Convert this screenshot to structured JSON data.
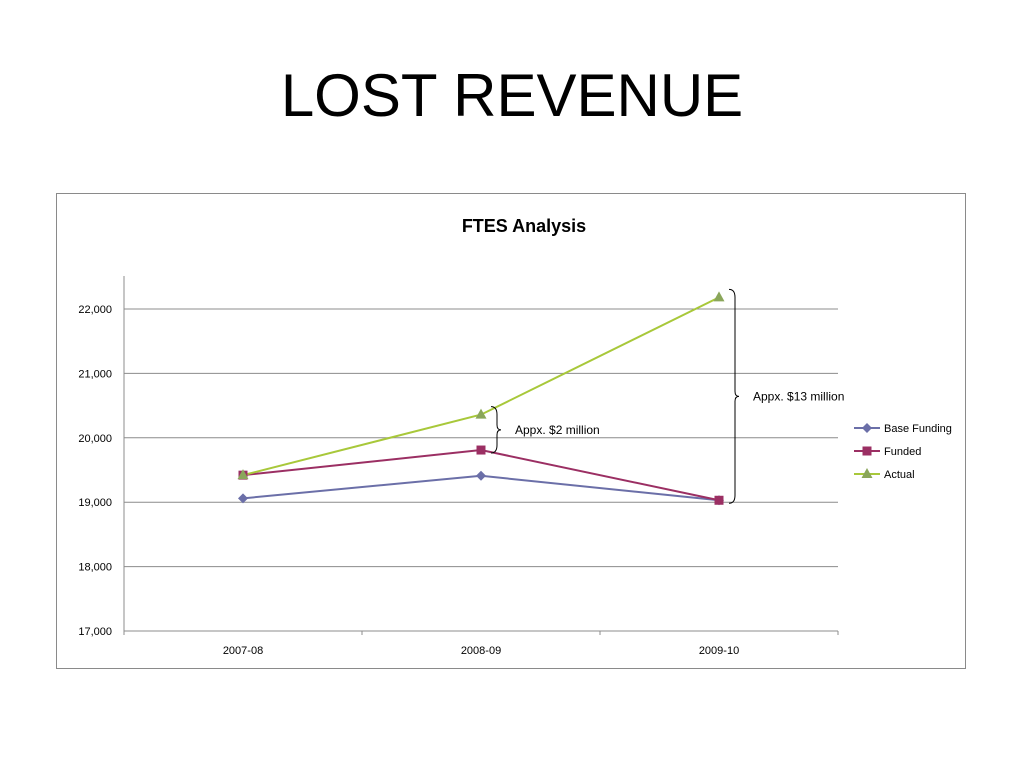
{
  "slide": {
    "title": "LOST REVENUE"
  },
  "colors": {
    "base_funding": "#6b6fa8",
    "funded": "#9b2f63",
    "actual": "#a8c83a",
    "actual_marker": "#8aa65a",
    "grid": "#8c8c8c"
  },
  "chart_data": {
    "type": "line",
    "title": "FTES Analysis",
    "categories": [
      "2007-08",
      "2008-09",
      "2009-10"
    ],
    "ylim": [
      17000,
      22500
    ],
    "yticks": [
      "17,000",
      "18,000",
      "19,000",
      "20,000",
      "21,000",
      "22,000"
    ],
    "ytick_values": [
      17000,
      18000,
      19000,
      20000,
      21000,
      22000
    ],
    "grid": true,
    "legend_position": "right",
    "series": [
      {
        "name": "Base Funding",
        "marker": "diamond",
        "values": [
          19060,
          19410,
          19030
        ]
      },
      {
        "name": "Funded",
        "marker": "square",
        "values": [
          19420,
          19810,
          19030
        ]
      },
      {
        "name": "Actual",
        "marker": "triangle",
        "values": [
          19420,
          20360,
          22180
        ]
      }
    ],
    "annotations": [
      {
        "text": "Appx. $2 million",
        "category": "2008-09",
        "from": 19810,
        "to": 20360
      },
      {
        "text": "Appx. $13 million",
        "category": "2009-10",
        "from": 19030,
        "to": 22180
      }
    ]
  }
}
